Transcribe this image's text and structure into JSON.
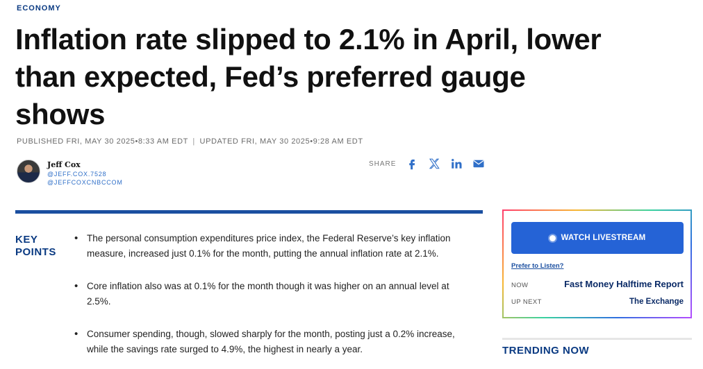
{
  "article": {
    "section": "ECONOMY",
    "headline": "Inflation rate slipped to 2.1% in April, lower than expected, Fed’s preferred gauge shows",
    "published": "PUBLISHED FRI, MAY 30 2025•8:33 AM EDT",
    "separator": "|",
    "updated": "UPDATED FRI, MAY 30 2025•9:28 AM EDT"
  },
  "author": {
    "name": "Jeff Cox",
    "handle_1": "@JEFF.COX.7528",
    "handle_2": "@JEFFCOXCNBCCOM"
  },
  "share": {
    "label": "SHARE",
    "icons": [
      "facebook-icon",
      "x-icon",
      "linkedin-icon",
      "email-icon"
    ]
  },
  "key_points": {
    "title": "KEY POINTS",
    "items": [
      "The personal consumption expenditures price index, the Federal Reserve’s key inflation measure, increased just 0.1% for the month, putting the annual inflation rate at 2.1%.",
      "Core inflation also was at 0.1% for the month though it was higher on an annual level at 2.5%.",
      "Consumer spending, though, slowed sharply for the month, posting just a 0.2% increase, while the savings rate surged to 4.9%, the highest in nearly a year."
    ]
  },
  "livestream": {
    "button_label": "WATCH LIVESTREAM",
    "prefer_link": "Prefer to Listen?",
    "now_label": "NOW",
    "now_show": "Fast Money Halftime Report",
    "next_label": "UP NEXT",
    "next_show": "The Exchange"
  },
  "trending": {
    "title": "TRENDING NOW"
  },
  "colors": {
    "brand_blue": "#1b4fa0",
    "button_blue": "#2563d6",
    "link_blue": "#2f6fc8"
  }
}
